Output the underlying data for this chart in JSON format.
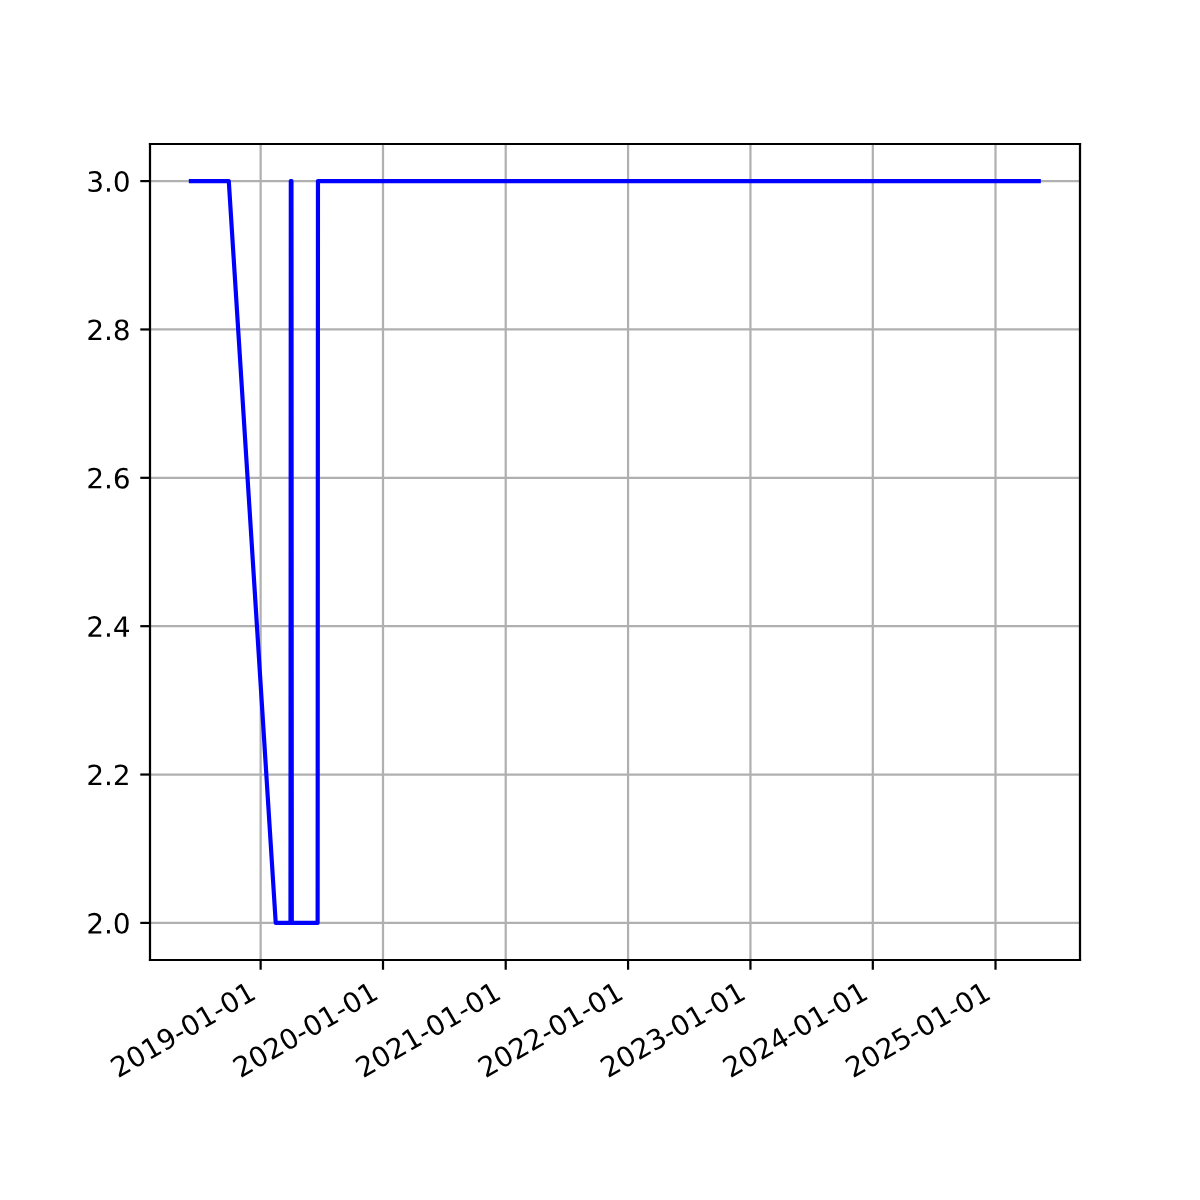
{
  "chart_data": {
    "type": "line",
    "x": [
      "2018-06-07",
      "2018-09-28",
      "2019-02-15",
      "2019-03-31",
      "2019-04-01",
      "2019-04-02",
      "2019-04-03",
      "2019-04-04",
      "2019-06-20",
      "2019-06-21",
      "2025-05-10"
    ],
    "series": [
      {
        "color": "#0000ff",
        "values": [
          3,
          3,
          2,
          2,
          3,
          2,
          3,
          2,
          2,
          3,
          3
        ]
      }
    ],
    "xlim": [
      "2018-02-05",
      "2025-09-10"
    ],
    "xticks": [
      {
        "value": "2019-01-01",
        "label": "2019-01-01"
      },
      {
        "value": "2020-01-01",
        "label": "2020-01-01"
      },
      {
        "value": "2021-01-01",
        "label": "2021-01-01"
      },
      {
        "value": "2022-01-01",
        "label": "2022-01-01"
      },
      {
        "value": "2023-01-01",
        "label": "2023-01-01"
      },
      {
        "value": "2024-01-01",
        "label": "2024-01-01"
      },
      {
        "value": "2025-01-01",
        "label": "2025-01-01"
      }
    ],
    "ylim": [
      1.95,
      3.05
    ],
    "yticks": [
      {
        "value": 2.0,
        "label": "2.0"
      },
      {
        "value": 2.2,
        "label": "2.2"
      },
      {
        "value": 2.4,
        "label": "2.4"
      },
      {
        "value": 2.6,
        "label": "2.6"
      },
      {
        "value": 2.8,
        "label": "2.8"
      },
      {
        "value": 3.0,
        "label": "3.0"
      }
    ],
    "grid": true,
    "marker": "none",
    "line_style": "solid"
  }
}
